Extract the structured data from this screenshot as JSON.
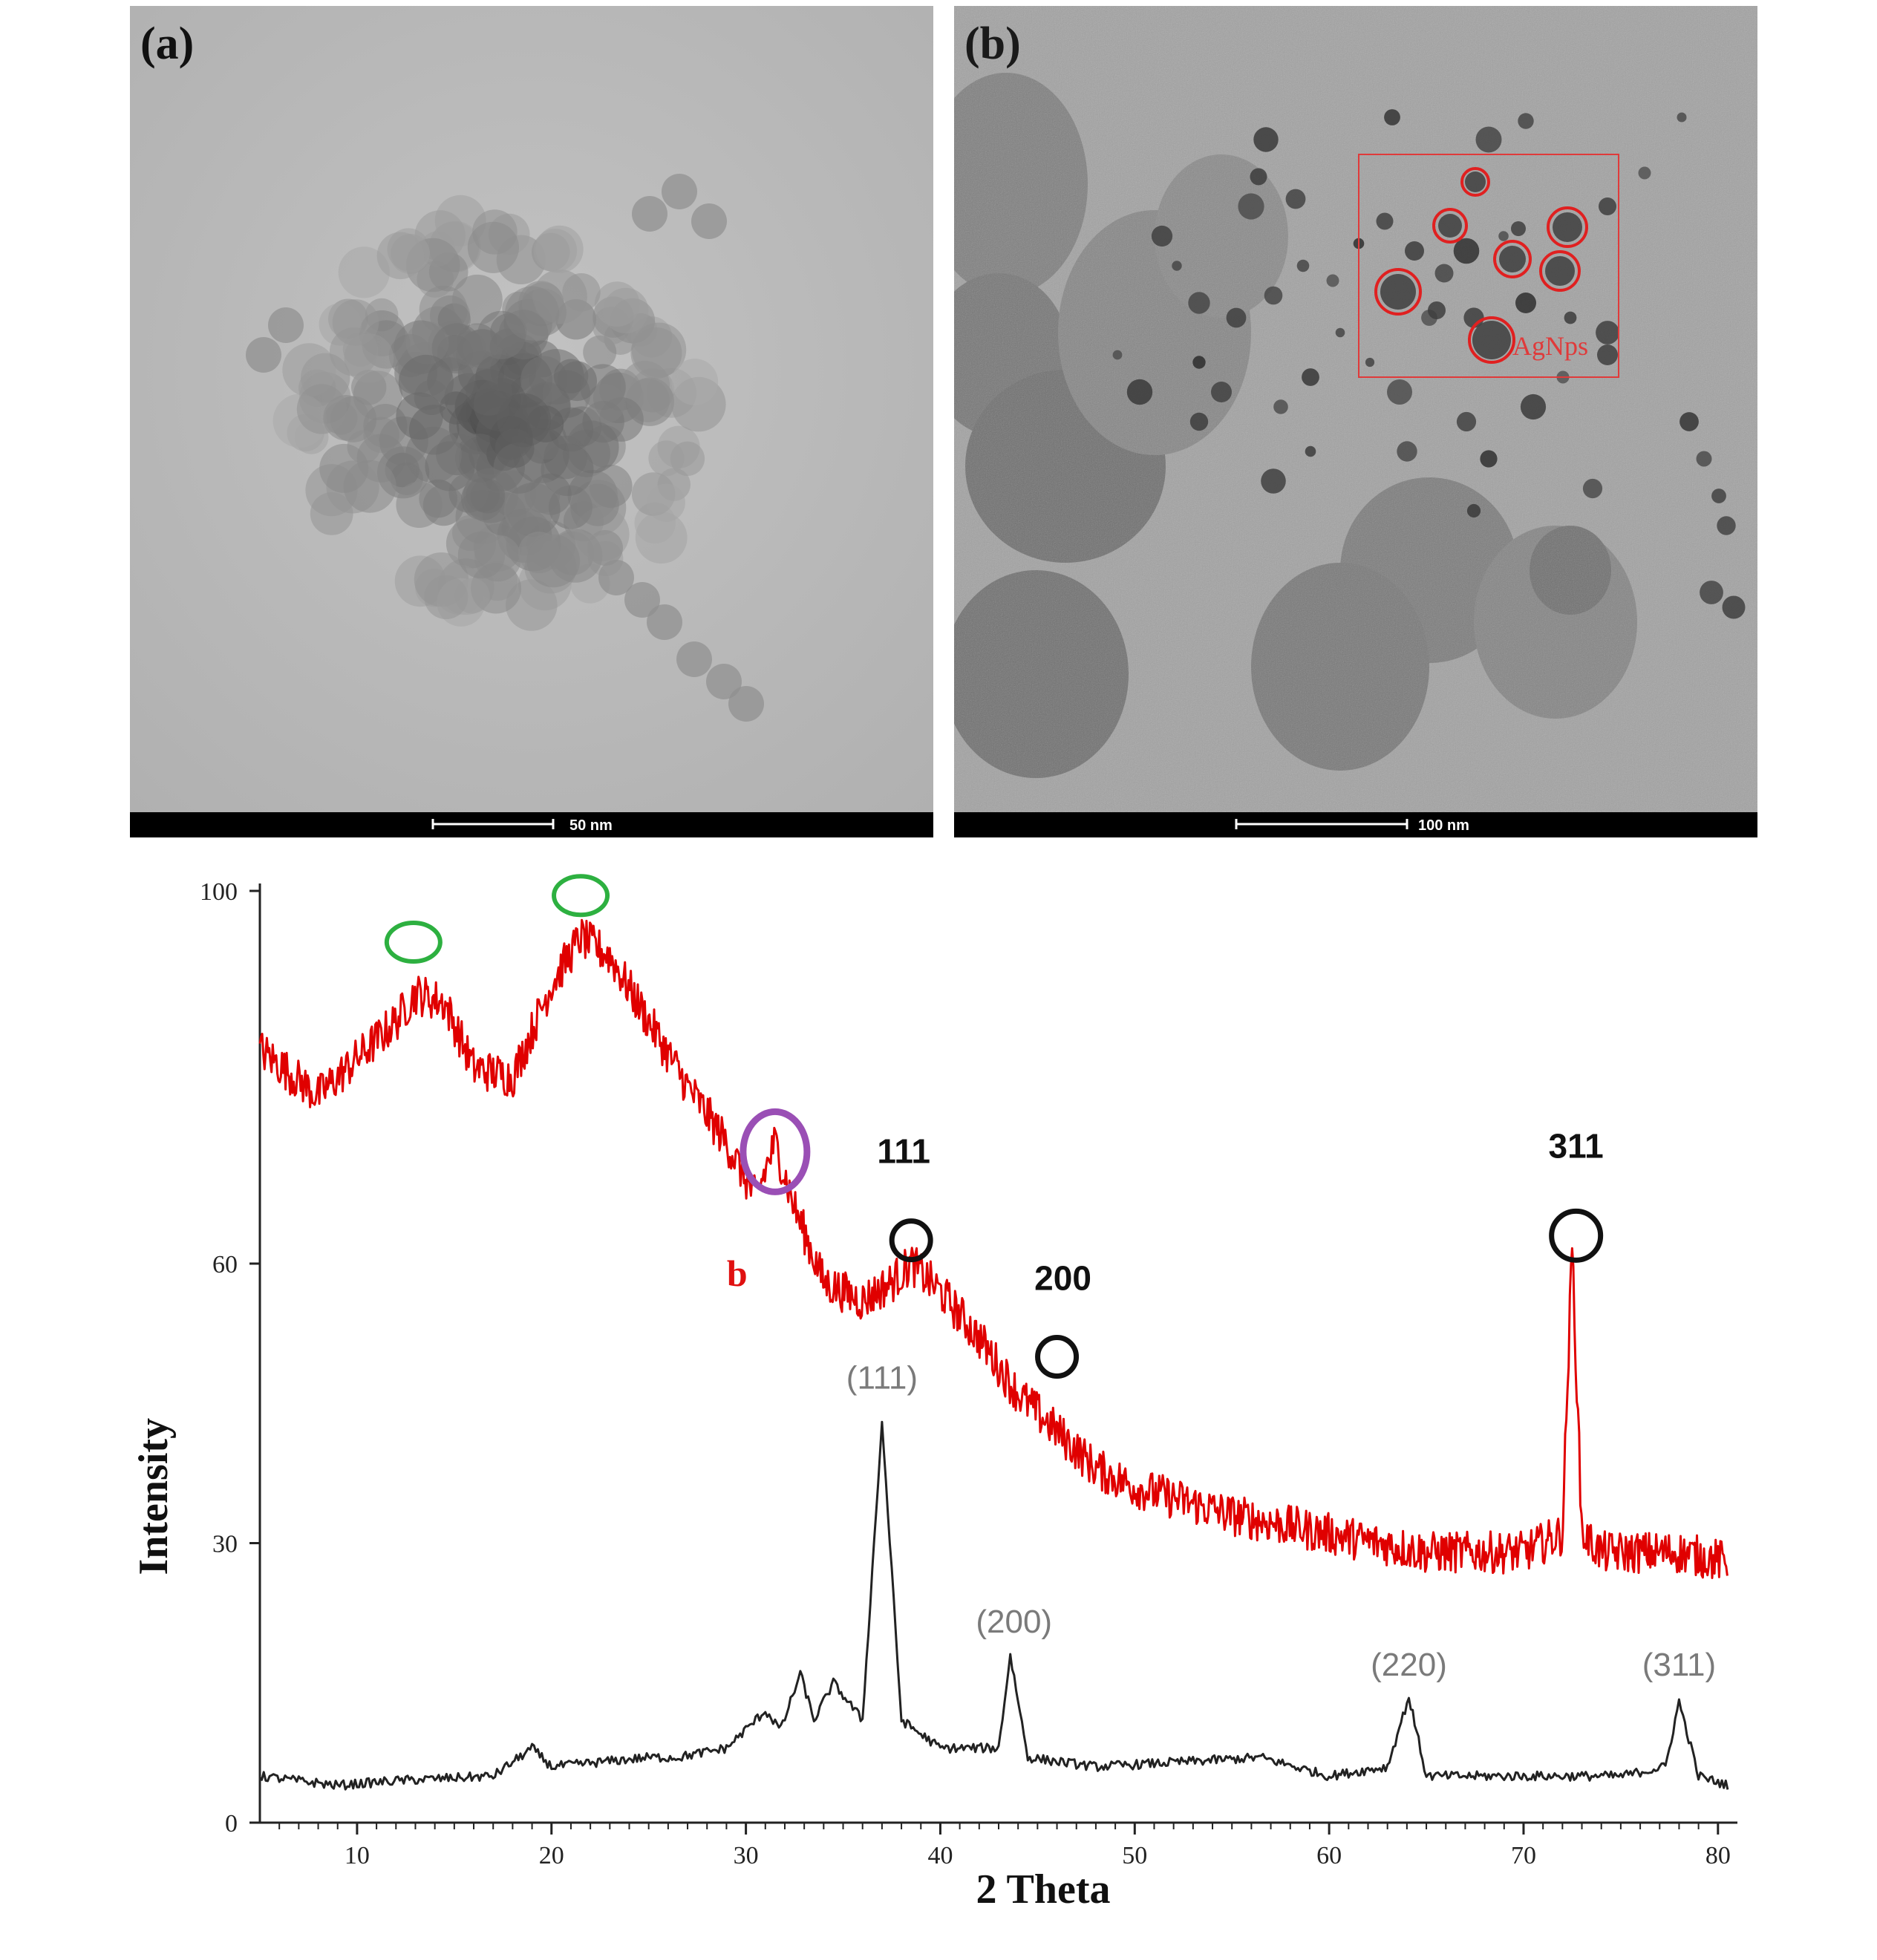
{
  "panel_a": {
    "label": "(a)",
    "scale_bar": "50 nm"
  },
  "panel_b": {
    "label": "(b)",
    "scale_bar": "100 nm",
    "annotation": "AgNps"
  },
  "chart_data": {
    "type": "line",
    "xlabel": "2 Theta",
    "ylabel": "Intensity",
    "xlim": [
      5,
      81
    ],
    "ylim": [
      0,
      100
    ],
    "x_ticks": [
      10,
      20,
      30,
      40,
      50,
      60,
      70,
      80
    ],
    "y_ticks": [
      0,
      30,
      60,
      100
    ],
    "grid": false,
    "series": [
      {
        "color": "#e00000",
        "x": [
          5,
          8,
          10,
          12,
          13,
          14.5,
          16,
          18,
          20,
          21.5,
          23,
          25,
          27,
          29,
          30.5,
          31.5,
          32.5,
          34,
          36,
          37.5,
          38.5,
          40,
          42,
          44,
          46,
          48,
          50,
          55,
          60,
          65,
          70,
          72,
          72.5,
          73,
          74,
          76,
          78,
          80.5
        ],
        "y": [
          83,
          78,
          82,
          86,
          89,
          88,
          81,
          80,
          90,
          95,
          93,
          86,
          79,
          73,
          67,
          73,
          66,
          58,
          56,
          58,
          60,
          57,
          52,
          46,
          42,
          38,
          36,
          33,
          31,
          29,
          29,
          31,
          62,
          31,
          29,
          29,
          29,
          28
        ]
      },
      {
        "color": "#222222",
        "x": [
          5,
          9,
          12,
          17,
          19,
          20,
          25,
          26.5,
          29,
          31,
          31.8,
          32.8,
          33.5,
          34.5,
          36,
          37,
          38,
          40,
          43,
          43.6,
          44.5,
          48,
          56.5,
          60,
          63,
          64.1,
          65,
          68,
          75,
          77.3,
          78,
          79,
          80.5
        ],
        "y": [
          5,
          4,
          4.5,
          5,
          8,
          6,
          7,
          7,
          8,
          12,
          10,
          16,
          11,
          15,
          11,
          43,
          11,
          8,
          8,
          18,
          7,
          6,
          7,
          5,
          6,
          13.5,
          5,
          5,
          5,
          6,
          13,
          5,
          4
        ]
      }
    ],
    "annotations": [
      {
        "text": "111",
        "x": 38.5,
        "y": 63
      },
      {
        "text": "200",
        "x": 46,
        "y": 50
      },
      {
        "text": "311",
        "x": 72.7,
        "y": 63
      },
      {
        "text": "b",
        "x": 31,
        "y": 60
      },
      {
        "text": "(111)",
        "x": 37,
        "y": 45
      },
      {
        "text": "(200)",
        "x": 43.6,
        "y": 20
      },
      {
        "text": "(220)",
        "x": 64.1,
        "y": 15
      },
      {
        "text": "(311)",
        "x": 78,
        "y": 15
      }
    ],
    "circle_colors": {
      "green": "#2db040",
      "purple": "#9a4fb5",
      "black": "#111111",
      "red": "#e02020"
    }
  }
}
